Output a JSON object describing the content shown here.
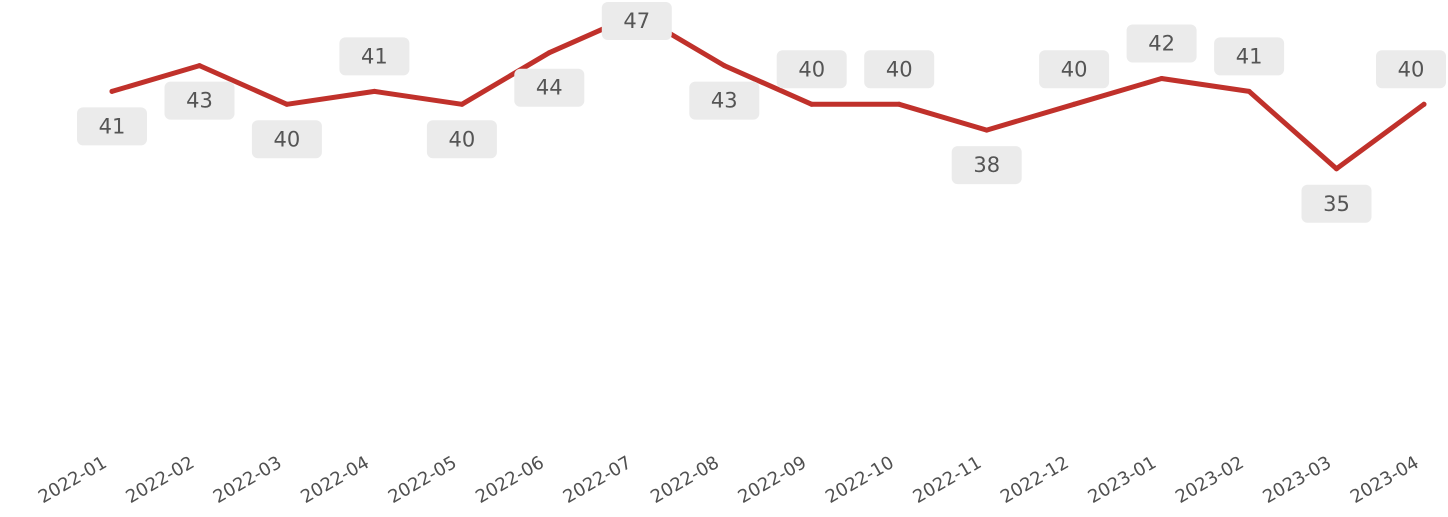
{
  "chart_data": {
    "type": "line",
    "title": "",
    "xlabel": "",
    "ylabel": "",
    "categories": [
      "2022-01",
      "2022-02",
      "2022-03",
      "2022-04",
      "2022-05",
      "2022-06",
      "2022-07",
      "2022-08",
      "2022-09",
      "2022-10",
      "2022-11",
      "2022-12",
      "2023-01",
      "2023-02",
      "2023-03",
      "2023-04"
    ],
    "series": [
      {
        "color": "#c0312b",
        "values": [
          41,
          43,
          40,
          41,
          40,
          44,
          47,
          43,
          40,
          40,
          38,
          40,
          42,
          41,
          35,
          40
        ]
      }
    ],
    "data_label_positions": [
      "below",
      "below",
      "below",
      "above",
      "below",
      "below",
      "above",
      "below",
      "above",
      "above",
      "below",
      "above",
      "above",
      "above",
      "below",
      "above"
    ],
    "ylim": [
      0,
      48
    ],
    "grid": false,
    "y_axis_visible": false,
    "legend": "none"
  }
}
